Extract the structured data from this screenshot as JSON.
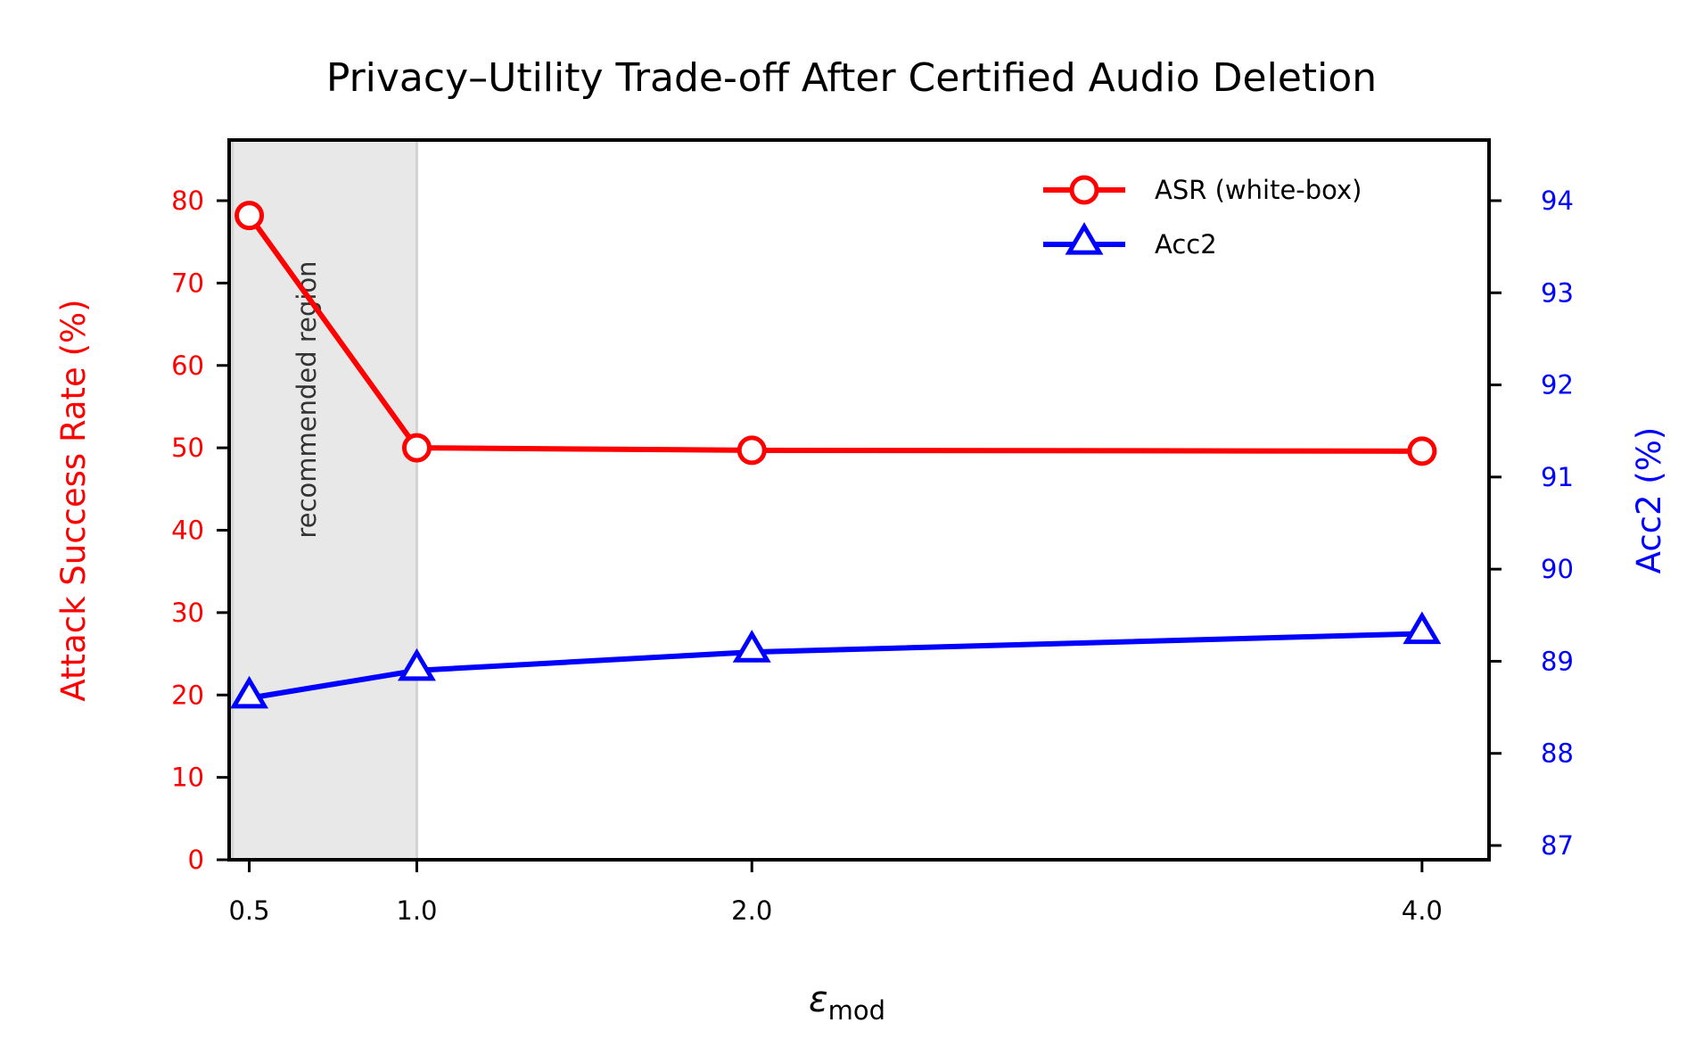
{
  "chart_data": {
    "type": "line",
    "title": "Privacy–Utility Trade-off After Certified Audio Deletion",
    "xlabel": "ε",
    "xlabel_subscript": "mod",
    "x": [
      0.5,
      1.0,
      2.0,
      4.0
    ],
    "x_tick_labels": [
      "0.5",
      "1.0",
      "2.0",
      "4.0"
    ],
    "xlim": [
      0.44,
      4.2
    ],
    "y_left": {
      "label": "Attack Success Rate (%)",
      "ylim": [
        0,
        80.0
      ],
      "ticks": [
        0,
        10,
        20,
        30,
        40,
        50,
        60,
        70,
        80
      ],
      "tick_labels": [
        "0",
        "10",
        "20",
        "30",
        "40",
        "50",
        "60",
        "70",
        "80"
      ],
      "color": "#ff0000"
    },
    "y_right": {
      "label": "Acc2 (%)",
      "ylim": [
        87.0,
        94.0
      ],
      "ticks": [
        87,
        88,
        89,
        90,
        91,
        92,
        93,
        94
      ],
      "tick_labels": [
        "87",
        "88",
        "89",
        "90",
        "91",
        "92",
        "93",
        "94"
      ],
      "color": "#0000ff"
    },
    "series": [
      {
        "name": "ASR (white-box)",
        "axis": "left",
        "values": [
          78.2,
          50.0,
          49.7,
          49.6
        ],
        "color": "#ff0000",
        "marker": "circle"
      },
      {
        "name": "Acc2",
        "axis": "right",
        "values": [
          88.6,
          88.9,
          89.1,
          89.3
        ],
        "color": "#0000ff",
        "marker": "triangle"
      }
    ],
    "shaded_region": {
      "x_range": [
        0.45,
        1.0
      ],
      "label": "recommended region",
      "color": "#e8e8e8"
    },
    "legend": {
      "placement": "top-right"
    },
    "grid": false
  }
}
